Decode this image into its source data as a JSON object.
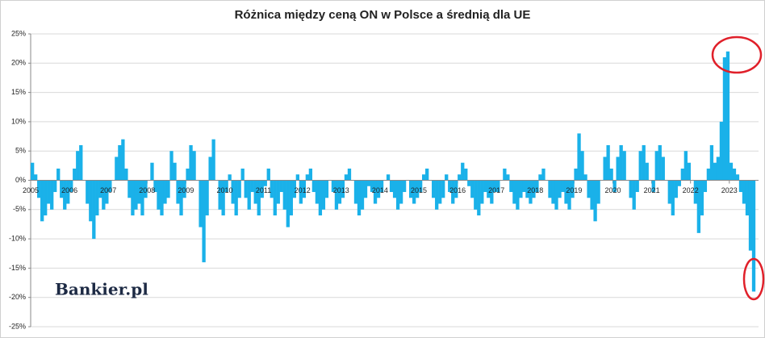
{
  "chart_data": {
    "type": "bar",
    "title": "Różnica między ceną ON w Polsce a średnią dla UE",
    "watermark": "Bankier.pl",
    "color": "#1ab1e9",
    "grid": true,
    "ylim": [
      -25,
      25
    ],
    "yticks": [
      {
        "value": -25,
        "label": "-25%"
      },
      {
        "value": -20,
        "label": "-20%"
      },
      {
        "value": -15,
        "label": "-15%"
      },
      {
        "value": -10,
        "label": "-10%"
      },
      {
        "value": -5,
        "label": "-5%"
      },
      {
        "value": 0,
        "label": "0%"
      },
      {
        "value": 5,
        "label": "5%"
      },
      {
        "value": 10,
        "label": "10%"
      },
      {
        "value": 15,
        "label": "15%"
      },
      {
        "value": 20,
        "label": "20%"
      },
      {
        "value": 25,
        "label": "25%"
      }
    ],
    "categories": [
      "2005",
      null,
      null,
      null,
      null,
      null,
      null,
      null,
      null,
      null,
      null,
      null,
      "2006",
      null,
      null,
      null,
      null,
      null,
      null,
      null,
      null,
      null,
      null,
      null,
      "2007",
      null,
      null,
      null,
      null,
      null,
      null,
      null,
      null,
      null,
      null,
      null,
      "2008",
      null,
      null,
      null,
      null,
      null,
      null,
      null,
      null,
      null,
      null,
      null,
      "2009",
      null,
      null,
      null,
      null,
      null,
      null,
      null,
      null,
      null,
      null,
      null,
      "2010",
      null,
      null,
      null,
      null,
      null,
      null,
      null,
      null,
      null,
      null,
      null,
      "2011",
      null,
      null,
      null,
      null,
      null,
      null,
      null,
      null,
      null,
      null,
      null,
      "2012",
      null,
      null,
      null,
      null,
      null,
      null,
      null,
      null,
      null,
      null,
      null,
      "2013",
      null,
      null,
      null,
      null,
      null,
      null,
      null,
      null,
      null,
      null,
      null,
      "2014",
      null,
      null,
      null,
      null,
      null,
      null,
      null,
      null,
      null,
      null,
      null,
      "2015",
      null,
      null,
      null,
      null,
      null,
      null,
      null,
      null,
      null,
      null,
      null,
      "2016",
      null,
      null,
      null,
      null,
      null,
      null,
      null,
      null,
      null,
      null,
      null,
      "2017",
      null,
      null,
      null,
      null,
      null,
      null,
      null,
      null,
      null,
      null,
      null,
      "2018",
      null,
      null,
      null,
      null,
      null,
      null,
      null,
      null,
      null,
      null,
      null,
      "2019",
      null,
      null,
      null,
      null,
      null,
      null,
      null,
      null,
      null,
      null,
      null,
      "2020",
      null,
      null,
      null,
      null,
      null,
      null,
      null,
      null,
      null,
      null,
      null,
      "2021",
      null,
      null,
      null,
      null,
      null,
      null,
      null,
      null,
      null,
      null,
      null,
      "2022",
      null,
      null,
      null,
      null,
      null,
      null,
      null,
      null,
      null,
      null,
      null,
      "2023",
      null,
      null,
      null,
      null,
      null,
      null,
      null
    ],
    "values": [
      3,
      1,
      -3,
      -7,
      -6,
      -4,
      -5,
      -2,
      2,
      -3,
      -5,
      -4,
      -2,
      2,
      5,
      6,
      0,
      -4,
      -7,
      -10,
      -6,
      -3,
      -5,
      -4,
      -2,
      0,
      4,
      6,
      7,
      2,
      -3,
      -6,
      -5,
      -4,
      -6,
      -3,
      0,
      3,
      -2,
      -5,
      -6,
      -4,
      -3,
      5,
      3,
      -4,
      -6,
      -3,
      2,
      6,
      5,
      0,
      -8,
      -14,
      -6,
      4,
      7,
      0,
      -5,
      -6,
      -2,
      1,
      -4,
      -6,
      -3,
      2,
      -3,
      -5,
      -2,
      -4,
      -6,
      -3,
      -1,
      2,
      -3,
      -6,
      -4,
      -2,
      -5,
      -8,
      -6,
      -3,
      1,
      -4,
      -3,
      1,
      2,
      -2,
      -4,
      -6,
      -5,
      -3,
      0,
      -2,
      -5,
      -4,
      -3,
      1,
      2,
      0,
      -4,
      -6,
      -5,
      -3,
      -1,
      -2,
      -4,
      -3,
      -2,
      0,
      1,
      -2,
      -3,
      -5,
      -4,
      -2,
      0,
      -3,
      -4,
      -3,
      -2,
      1,
      2,
      0,
      -3,
      -5,
      -4,
      -3,
      1,
      -2,
      -4,
      -3,
      1,
      3,
      2,
      -1,
      -3,
      -5,
      -6,
      -4,
      -2,
      -3,
      -4,
      -2,
      -2,
      0,
      2,
      1,
      -2,
      -4,
      -5,
      -3,
      -2,
      -3,
      -4,
      -3,
      -2,
      1,
      2,
      0,
      -3,
      -4,
      -5,
      -3,
      -2,
      -4,
      -5,
      -3,
      2,
      8,
      5,
      1,
      -3,
      -5,
      -7,
      -4,
      0,
      4,
      6,
      2,
      -2,
      4,
      6,
      5,
      0,
      -3,
      -5,
      -2,
      5,
      6,
      3,
      0,
      -2,
      5,
      6,
      4,
      0,
      -4,
      -6,
      -3,
      -1,
      2,
      5,
      3,
      0,
      -4,
      -9,
      -6,
      -2,
      2,
      6,
      3,
      4,
      10,
      21,
      22,
      3,
      2,
      1,
      -2,
      -4,
      -6,
      -12,
      -19
    ]
  }
}
